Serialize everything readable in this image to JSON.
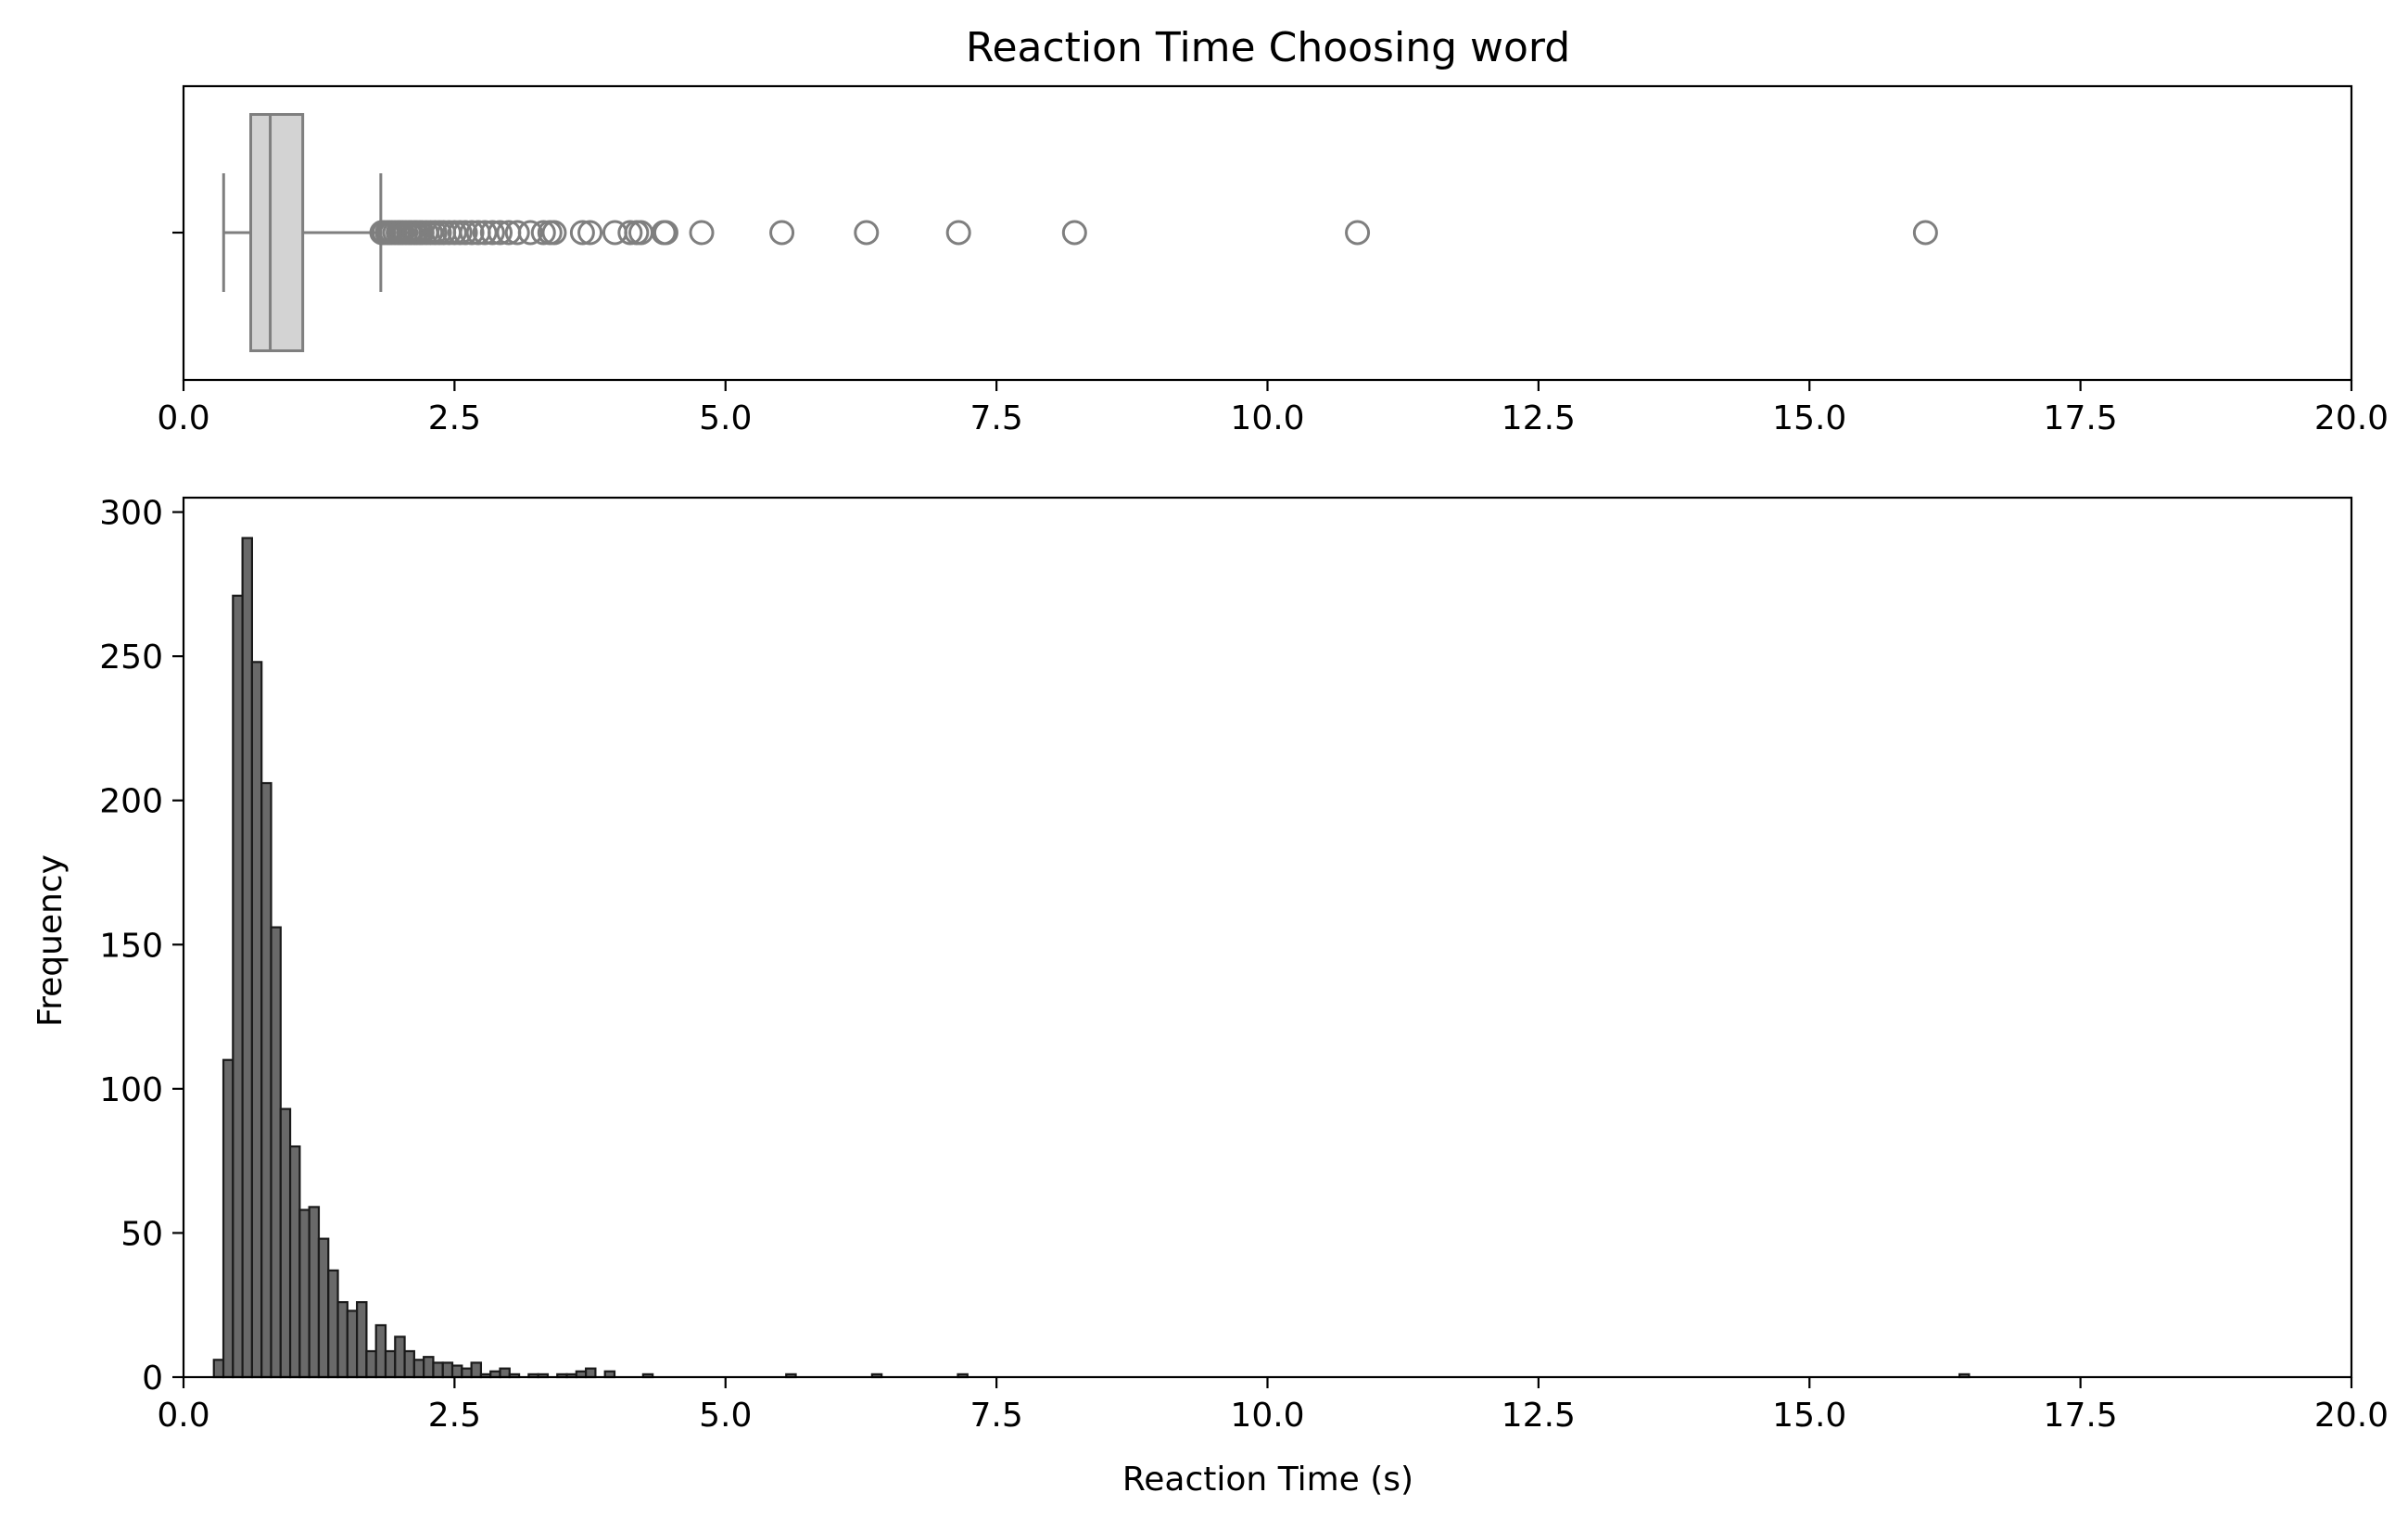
{
  "chart_data": [
    {
      "type": "box",
      "title": "Reaction Time Choosing word",
      "xlabel": "",
      "ylabel": "",
      "xlim": [
        0,
        20
      ],
      "xticks": [
        "0.0",
        "2.5",
        "5.0",
        "7.5",
        "10.0",
        "12.5",
        "15.0",
        "17.5",
        "20.0"
      ],
      "box": {
        "whisker_low": 0.37,
        "q1": 0.62,
        "median": 0.8,
        "q3": 1.1,
        "whisker_high": 1.82
      },
      "outliers": [
        1.83,
        1.85,
        1.88,
        1.9,
        1.92,
        1.95,
        1.98,
        2.0,
        2.02,
        2.05,
        2.08,
        2.1,
        2.13,
        2.15,
        2.18,
        2.2,
        2.24,
        2.28,
        2.32,
        2.36,
        2.4,
        2.45,
        2.5,
        2.55,
        2.6,
        2.66,
        2.72,
        2.78,
        2.85,
        2.92,
        3.0,
        3.08,
        3.2,
        3.32,
        3.38,
        3.42,
        3.68,
        3.75,
        3.98,
        4.12,
        4.18,
        4.22,
        4.43,
        4.45,
        4.78,
        5.52,
        6.3,
        7.15,
        8.22,
        10.83,
        16.07
      ],
      "colors": {
        "box_fill": "#d3d3d3",
        "box_edge": "#7f7f7f"
      }
    },
    {
      "type": "bar",
      "title": "",
      "xlabel": "Reaction Time (s)",
      "ylabel": "Frequency",
      "xlim": [
        0,
        20
      ],
      "ylim": [
        0,
        305
      ],
      "xticks": [
        "0.0",
        "2.5",
        "5.0",
        "7.5",
        "10.0",
        "12.5",
        "15.0",
        "17.5",
        "20.0"
      ],
      "yticks": [
        "0",
        "50",
        "100",
        "150",
        "200",
        "250",
        "300"
      ],
      "bin_width": 0.088,
      "bin_start": 0.28,
      "values": [
        6,
        110,
        271,
        291,
        248,
        206,
        156,
        93,
        80,
        58,
        59,
        48,
        37,
        26,
        23,
        26,
        9,
        18,
        9,
        14,
        9,
        6,
        7,
        5,
        5,
        4,
        3,
        5,
        1,
        2,
        3,
        1,
        0,
        1,
        1,
        0,
        1,
        1,
        2,
        3,
        0,
        2,
        0,
        0,
        0,
        1,
        0,
        0,
        0,
        0,
        0,
        0,
        0,
        0,
        0,
        0,
        0,
        0,
        0,
        0,
        1,
        0,
        0,
        0,
        0,
        0,
        0,
        0,
        0,
        1,
        0,
        0,
        0,
        0,
        0,
        0,
        0,
        0,
        1,
        0,
        0,
        0,
        0,
        0,
        0,
        0,
        0,
        0,
        0,
        0,
        0,
        0,
        0,
        0,
        0,
        0,
        0,
        0,
        0,
        0,
        0,
        0,
        0,
        0,
        0,
        0,
        0,
        0,
        0,
        0,
        0,
        0,
        0,
        0,
        0,
        0,
        0,
        0,
        0,
        0,
        0,
        0,
        0,
        0,
        0,
        0,
        0,
        0,
        0,
        0,
        0,
        0,
        0,
        0,
        0,
        0,
        0,
        0,
        0,
        0,
        0,
        0,
        0,
        0,
        0,
        0,
        0,
        0,
        0,
        0,
        0,
        0,
        0,
        0,
        0,
        0,
        0,
        0,
        0,
        0,
        0,
        0,
        0,
        0,
        0,
        0,
        0,
        0,
        0,
        0,
        0,
        0,
        0,
        0,
        0,
        0,
        0,
        0,
        0,
        0,
        0,
        0,
        0,
        1
      ],
      "colors": {
        "bar_fill": "#696969",
        "bar_edge": "#1a1a1a"
      }
    }
  ]
}
